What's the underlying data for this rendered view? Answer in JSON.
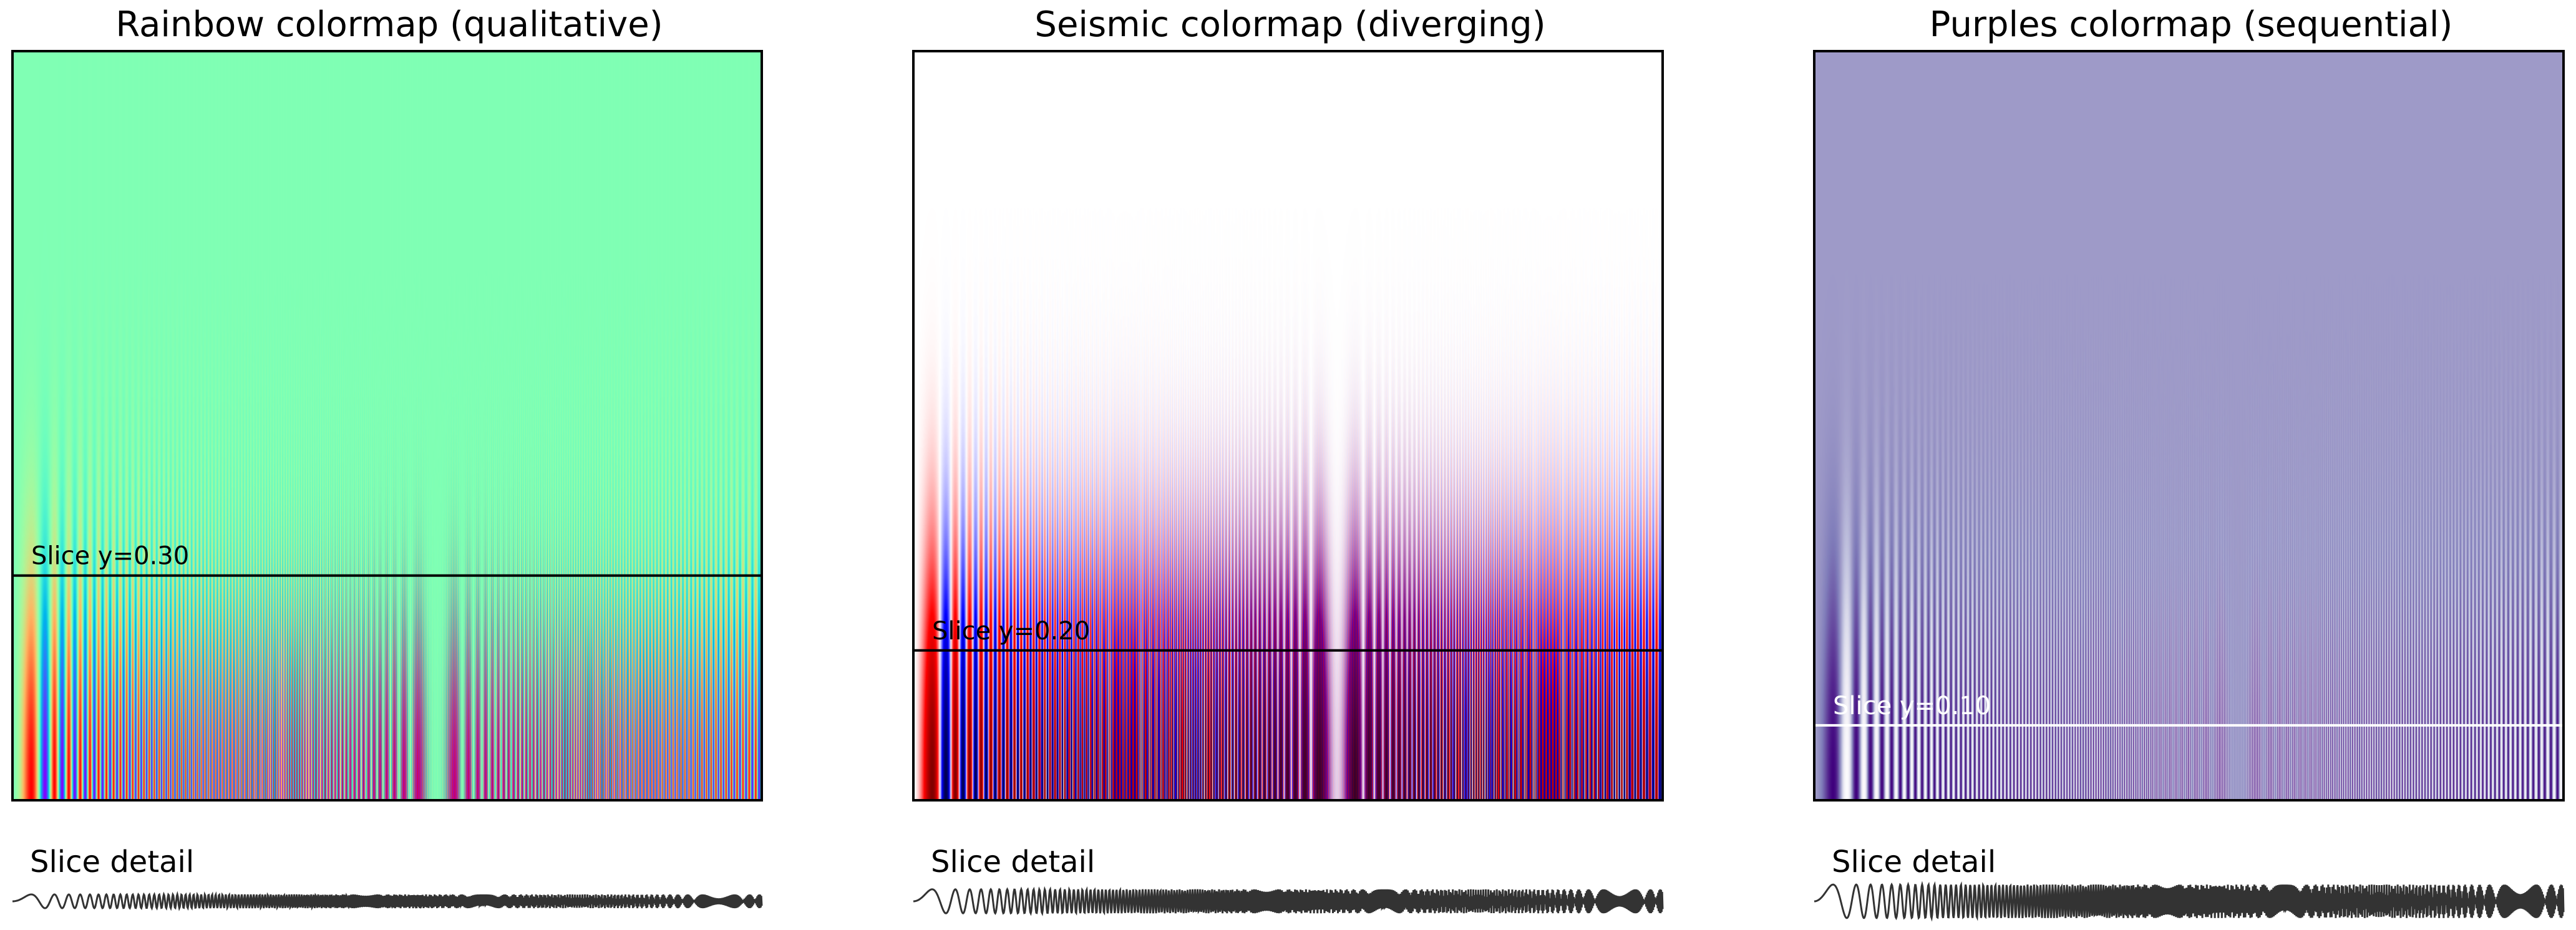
{
  "figure": {
    "background": "#ffffff"
  },
  "chart_data": [
    {
      "type": "heatmap",
      "title": "Rainbow colormap (qualitative)",
      "colormap": "rainbow",
      "colormap_kind": "qualitative",
      "function": "exp(-(y/0.3)^2) * sin(x^2)",
      "xlim": [
        0,
        50
      ],
      "ylim": [
        0,
        1
      ],
      "axis_ticks": "hidden",
      "slice": {
        "y": 0.3,
        "label": "Slice y=0.30",
        "line_color": "#000000",
        "label_color": "#000000"
      },
      "detail": {
        "label": "Slice detail",
        "type": "line",
        "line_color": "#333333"
      }
    },
    {
      "type": "heatmap",
      "title": "Seismic colormap (diverging)",
      "colormap": "seismic",
      "colormap_kind": "diverging",
      "function": "exp(-(y/0.3)^2) * sin(x^2)",
      "xlim": [
        0,
        50
      ],
      "ylim": [
        0,
        1
      ],
      "axis_ticks": "hidden",
      "slice": {
        "y": 0.2,
        "label": "Slice y=0.20",
        "line_color": "#000000",
        "label_color": "#000000"
      },
      "detail": {
        "label": "Slice detail",
        "type": "line",
        "line_color": "#333333"
      }
    },
    {
      "type": "heatmap",
      "title": "Purples colormap (sequential)",
      "colormap": "purples",
      "colormap_kind": "sequential",
      "function": "exp(-(y/0.3)^2) * sin(x^2)",
      "xlim": [
        0,
        50
      ],
      "ylim": [
        0,
        1
      ],
      "axis_ticks": "hidden",
      "slice": {
        "y": 0.1,
        "label": "Slice y=0.10",
        "line_color": "#ffffff",
        "label_color": "#ffffff"
      },
      "detail": {
        "label": "Slice detail",
        "type": "line",
        "line_color": "#333333"
      }
    }
  ]
}
